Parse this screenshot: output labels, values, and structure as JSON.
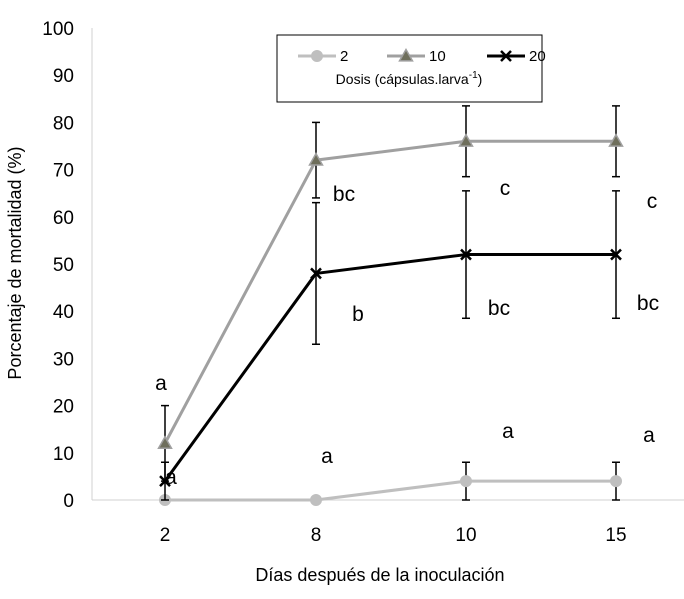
{
  "chart_data": {
    "type": "line",
    "title": "",
    "xlabel": "Días después de la inoculación",
    "ylabel": "Porcentaje de mortalidad (%)",
    "ylim": [
      0,
      100
    ],
    "yticks": [
      0,
      10,
      20,
      30,
      40,
      50,
      60,
      70,
      80,
      90,
      100
    ],
    "categories": [
      "2",
      "8",
      "10",
      "15"
    ],
    "grid": false,
    "legend": {
      "placement": "top-center",
      "title_main": "Dosis (cápsulas.larva",
      "title_sup": "-1",
      "title_end": ")"
    },
    "series": [
      {
        "name": "2",
        "color": "#bfbfbf",
        "marker": "circle",
        "values": [
          0,
          0,
          4,
          4
        ],
        "errors": [
          null,
          null,
          4,
          4
        ],
        "letters": [
          null,
          "a",
          "a",
          "a"
        ]
      },
      {
        "name": "10",
        "color": "#a0a0a0",
        "marker": "triangle",
        "values": [
          12,
          72,
          76,
          76
        ],
        "errors": [
          8,
          8,
          7.5,
          7.5
        ],
        "letters": [
          "a",
          "bc",
          "c",
          "c"
        ]
      },
      {
        "name": "20",
        "color": "#000000",
        "marker": "x",
        "values": [
          4,
          48,
          52,
          52
        ],
        "errors": [
          4,
          15,
          13.5,
          13.5
        ],
        "letters": [
          "a",
          "b",
          "bc",
          "bc"
        ]
      }
    ]
  }
}
